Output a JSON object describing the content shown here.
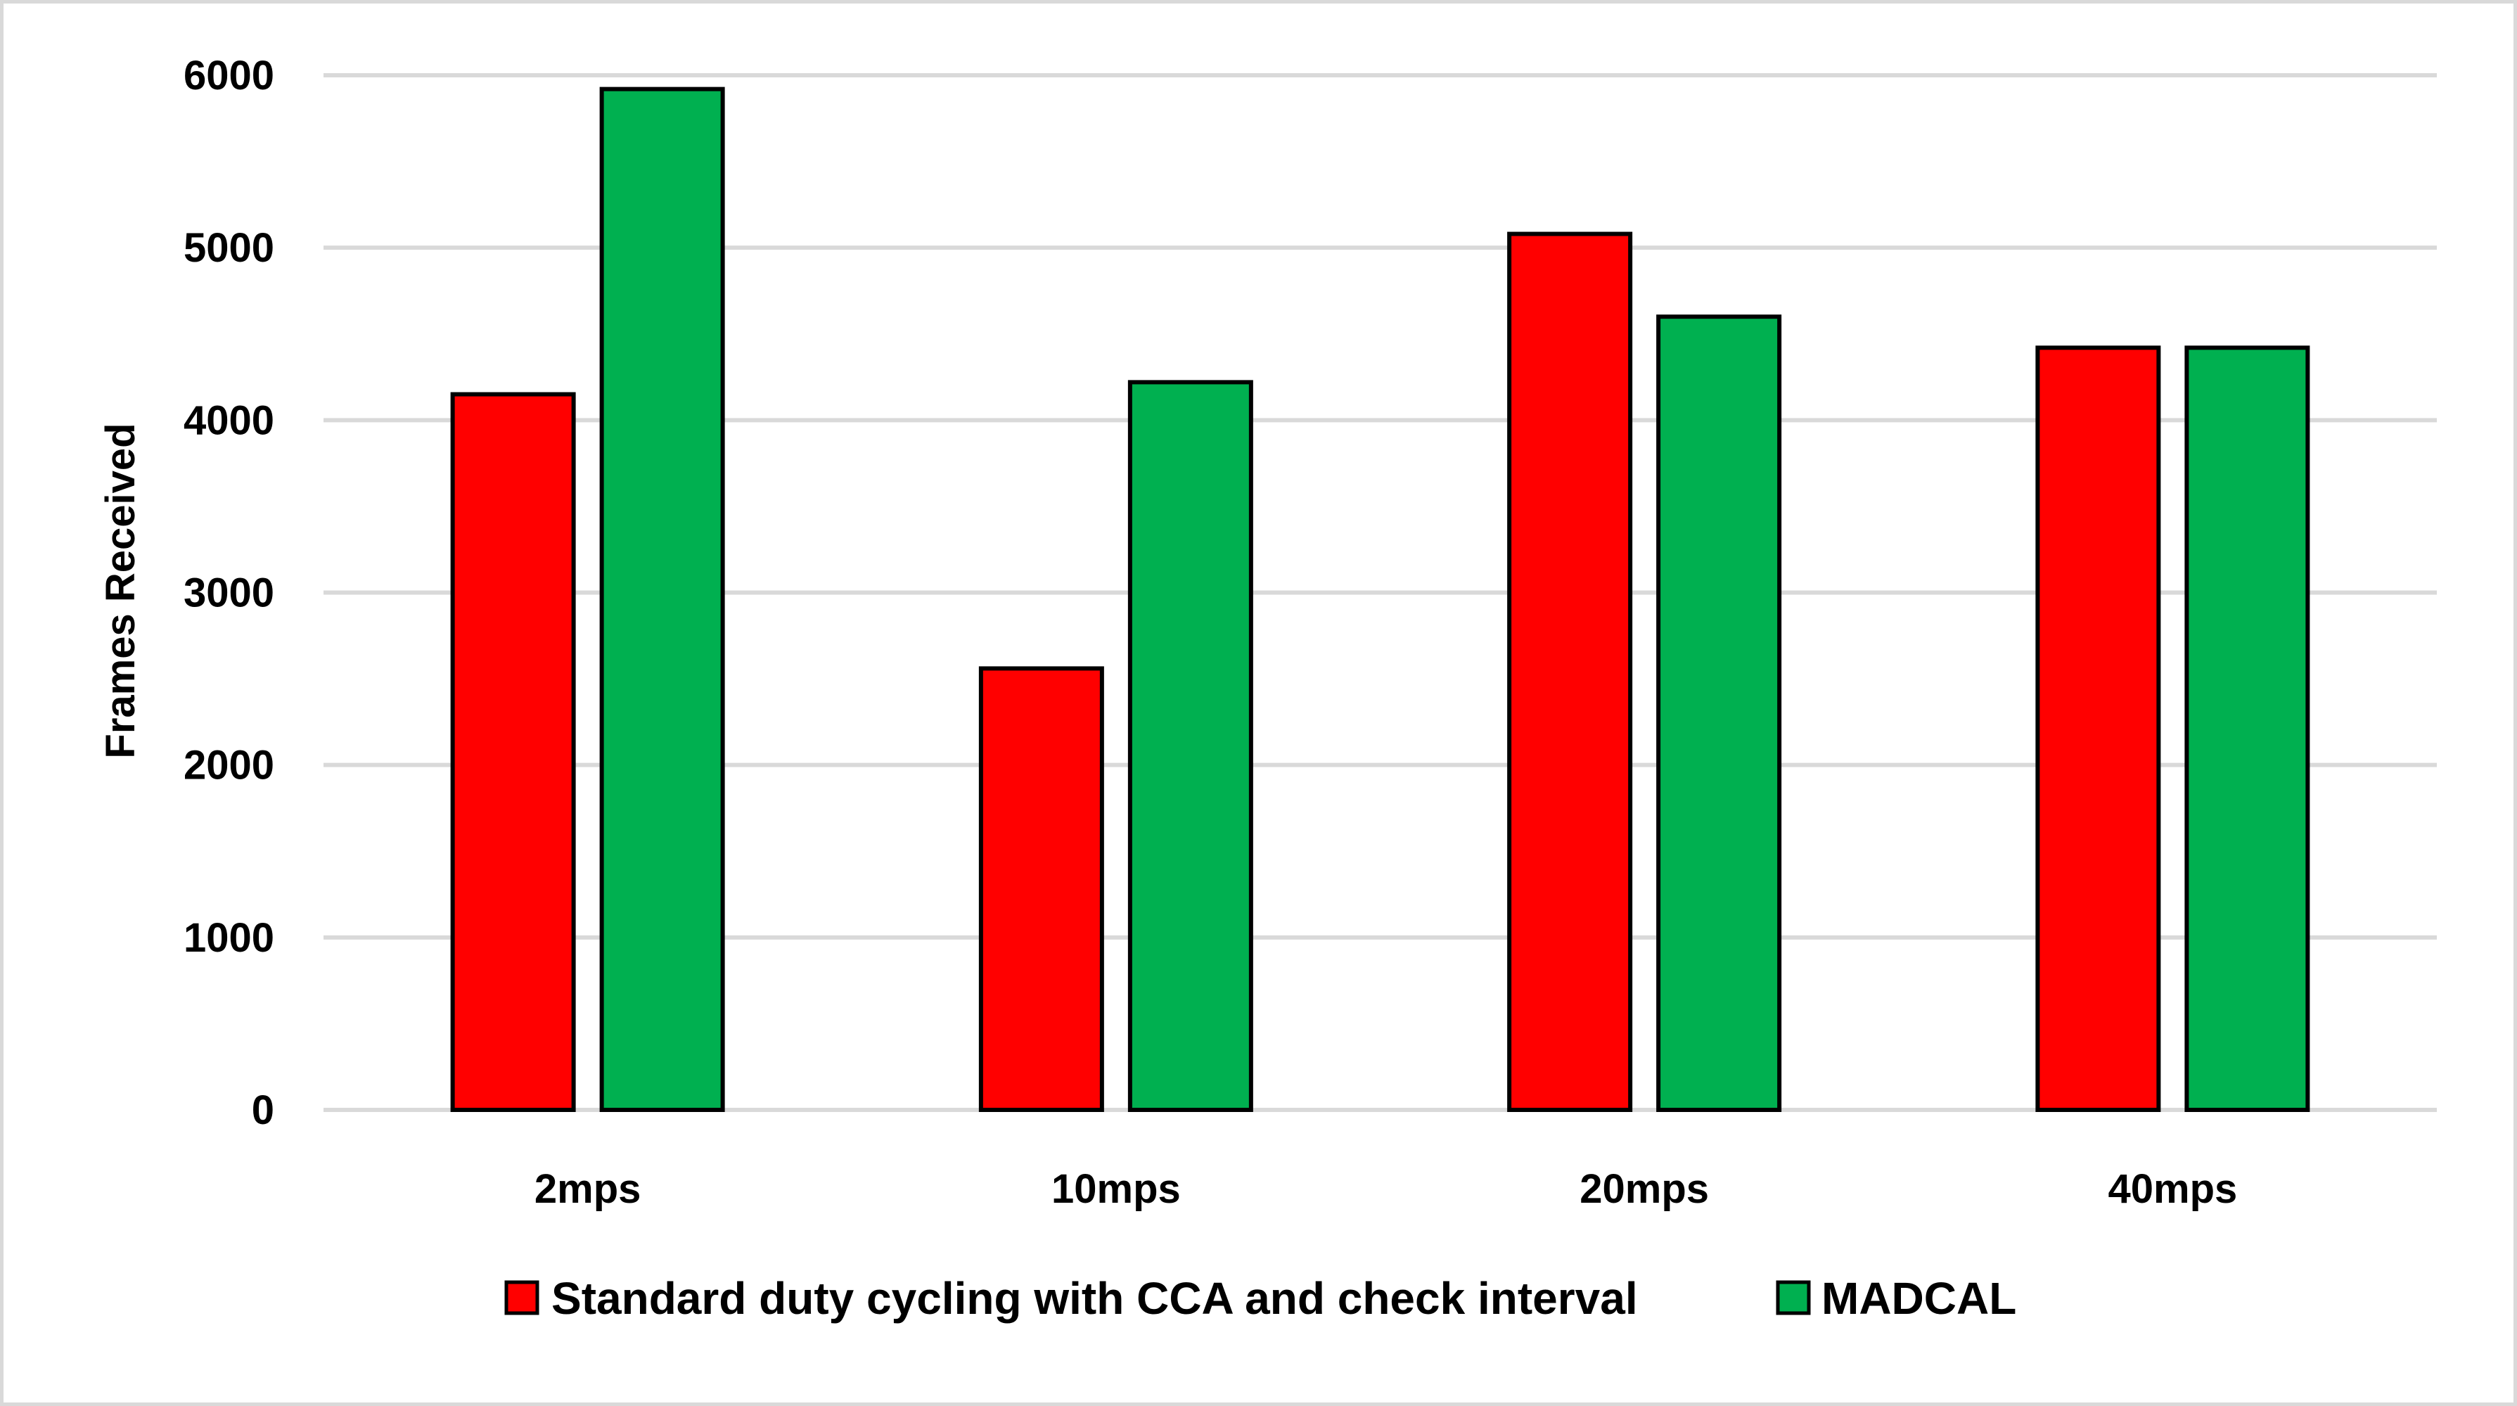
{
  "chart_data": {
    "type": "bar",
    "title": "",
    "xlabel": "",
    "ylabel": "Frames Received",
    "ylim": [
      0,
      6000
    ],
    "yticks": [
      "0",
      "1000",
      "2000",
      "3000",
      "4000",
      "5000",
      "6000"
    ],
    "grid": true,
    "legend_position": "bottom",
    "categories": [
      "2mps",
      "10mps",
      "20mps",
      "40mps"
    ],
    "series": [
      {
        "name": "Standard duty cycling with CCA and check interval",
        "color": "#ff0000",
        "values": [
          4150,
          2560,
          5080,
          4420
        ]
      },
      {
        "name": "MADCAL",
        "color": "#00b050",
        "values": [
          5920,
          4220,
          4600,
          4420
        ]
      }
    ]
  }
}
